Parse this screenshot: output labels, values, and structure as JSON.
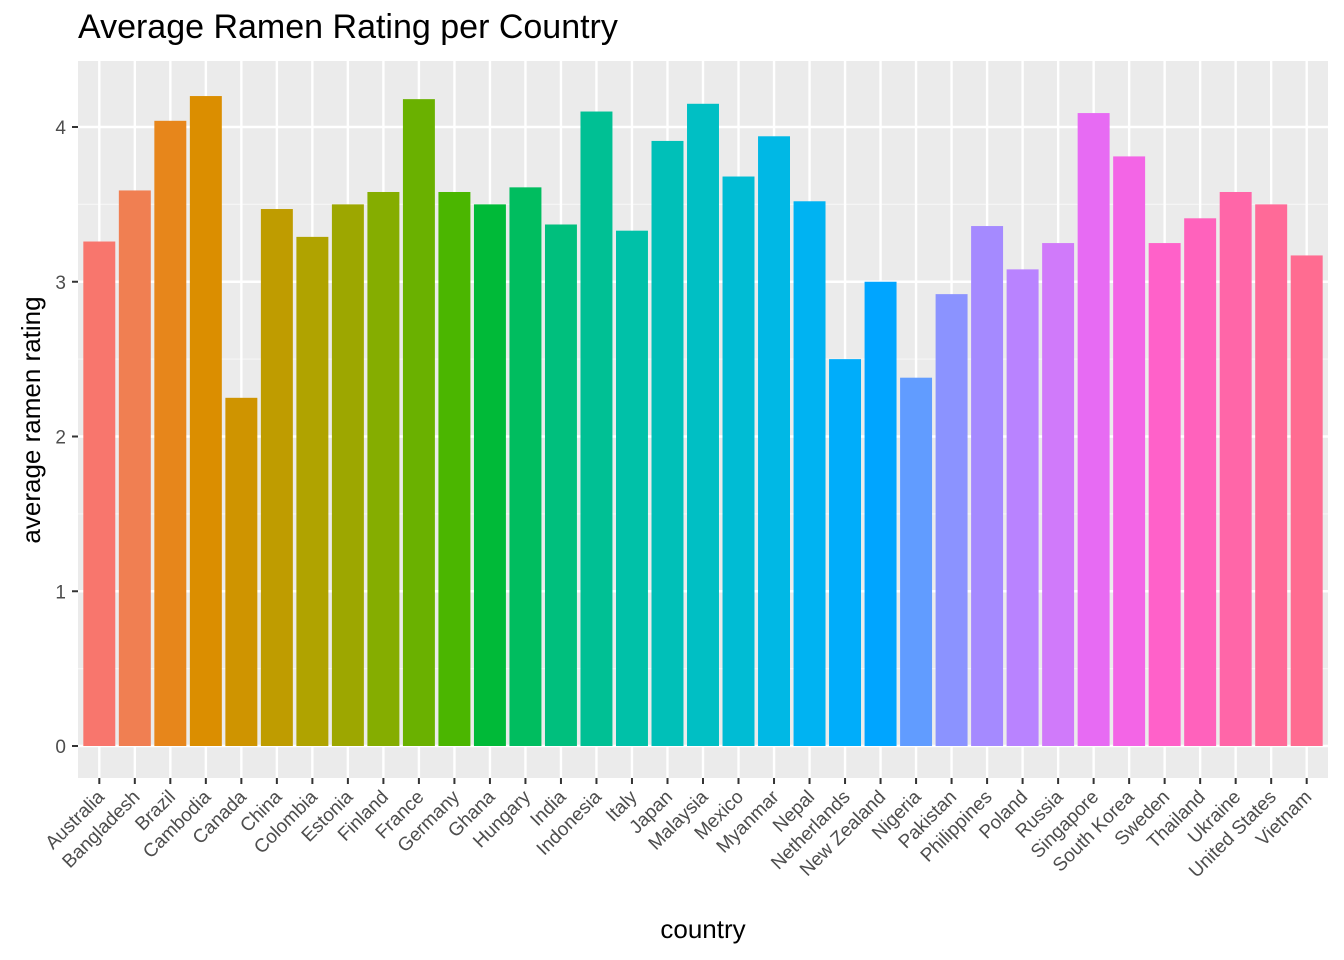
{
  "chart_data": {
    "type": "bar",
    "title": "Average Ramen Rating per Country",
    "xlabel": "country",
    "ylabel": "average ramen rating",
    "ylim": [
      0,
      4.4
    ],
    "yticks": [
      0,
      1,
      2,
      3,
      4
    ],
    "grid": true,
    "legend": "none",
    "categories": [
      "Australia",
      "Bangladesh",
      "Brazil",
      "Cambodia",
      "Canada",
      "China",
      "Colombia",
      "Estonia",
      "Finland",
      "France",
      "Germany",
      "Ghana",
      "Hungary",
      "India",
      "Indonesia",
      "Italy",
      "Japan",
      "Malaysia",
      "Mexico",
      "Myanmar",
      "Nepal",
      "Netherlands",
      "New Zealand",
      "Nigeria",
      "Pakistan",
      "Philippines",
      "Poland",
      "Russia",
      "Singapore",
      "South Korea",
      "Sweden",
      "Thailand",
      "Ukraine",
      "United States",
      "Vietnam"
    ],
    "values": [
      3.26,
      3.59,
      4.04,
      4.2,
      2.25,
      3.47,
      3.29,
      3.5,
      3.58,
      4.18,
      3.58,
      3.5,
      3.61,
      3.37,
      4.1,
      3.33,
      3.91,
      4.15,
      3.68,
      3.94,
      3.52,
      2.5,
      3.0,
      2.38,
      2.92,
      3.36,
      3.08,
      3.25,
      4.09,
      3.81,
      3.25,
      3.41,
      3.58,
      3.5,
      3.17
    ],
    "colors": [
      "#F8766D",
      "#F07F52",
      "#E7861B",
      "#DB8E00",
      "#CF9400",
      "#BF9C00",
      "#B0A300",
      "#9DA700",
      "#85AD00",
      "#6AB100",
      "#4BB600",
      "#00BA38",
      "#00BD5F",
      "#00BF7D",
      "#00C094",
      "#00C1A8",
      "#00C0B8",
      "#00BFC4",
      "#00BCD4",
      "#00B8E5",
      "#00B3F2",
      "#00ADFA",
      "#00A5FF",
      "#619CFF",
      "#8B93FF",
      "#A58AFF",
      "#B983FF",
      "#D07AFA",
      "#E76BF3",
      "#F365E6",
      "#FF61C9",
      "#FF62BC",
      "#FF66A8",
      "#FF6A98",
      "#FF6C91"
    ]
  }
}
